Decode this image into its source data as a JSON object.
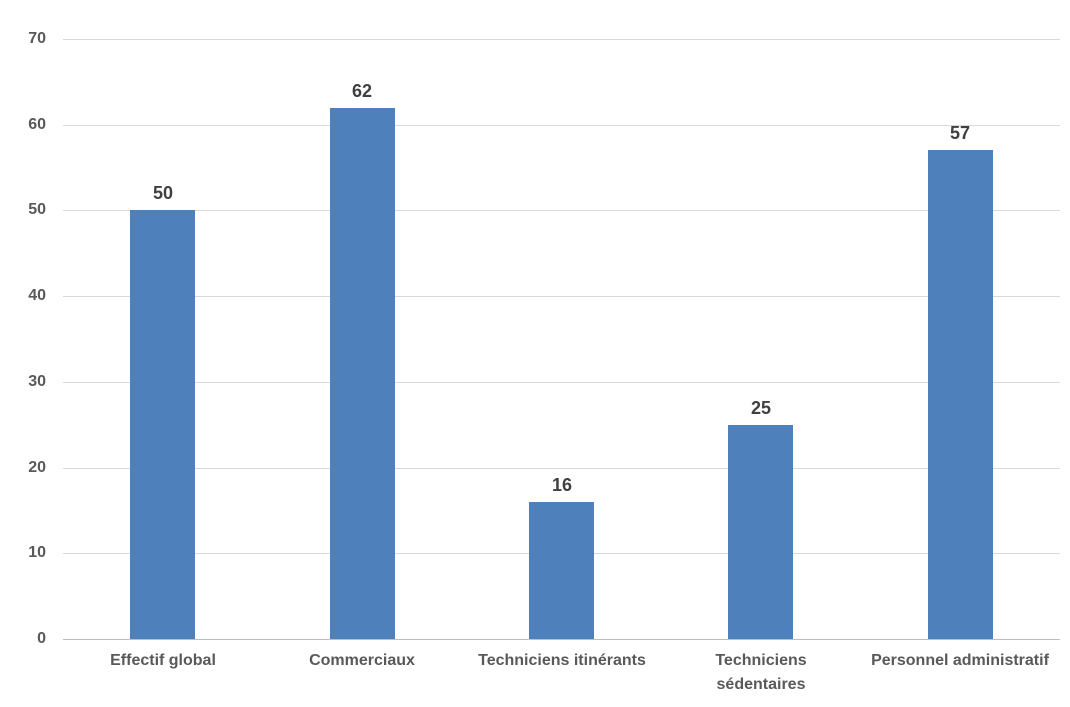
{
  "chart_data": {
    "type": "bar",
    "title": "",
    "xlabel": "",
    "ylabel": "",
    "categories": [
      "Effectif global",
      "Commerciaux",
      "Techniciens itinérants",
      "Techniciens sédentaires",
      "Personnel administratif"
    ],
    "category_display": [
      "Effectif global",
      "Commerciaux",
      "Techniciens itinérants",
      "Techniciens\nsédentaires",
      "Personnel administratif"
    ],
    "values": [
      50,
      62,
      16,
      25,
      57
    ],
    "value_labels": [
      "50",
      "62",
      "16",
      "25",
      "57"
    ],
    "ylim": [
      0,
      70
    ],
    "y_ticks": [
      0,
      10,
      20,
      30,
      40,
      50,
      60,
      70
    ],
    "grid": "horizontal",
    "legend": "none",
    "colors": {
      "bar": "#4e80bc",
      "gridline": "#d9d9d9",
      "axis_line": "#bfbfbf",
      "tick_label": "#595959",
      "category_label": "#595959",
      "value_label": "#404040",
      "background": "#ffffff"
    }
  }
}
